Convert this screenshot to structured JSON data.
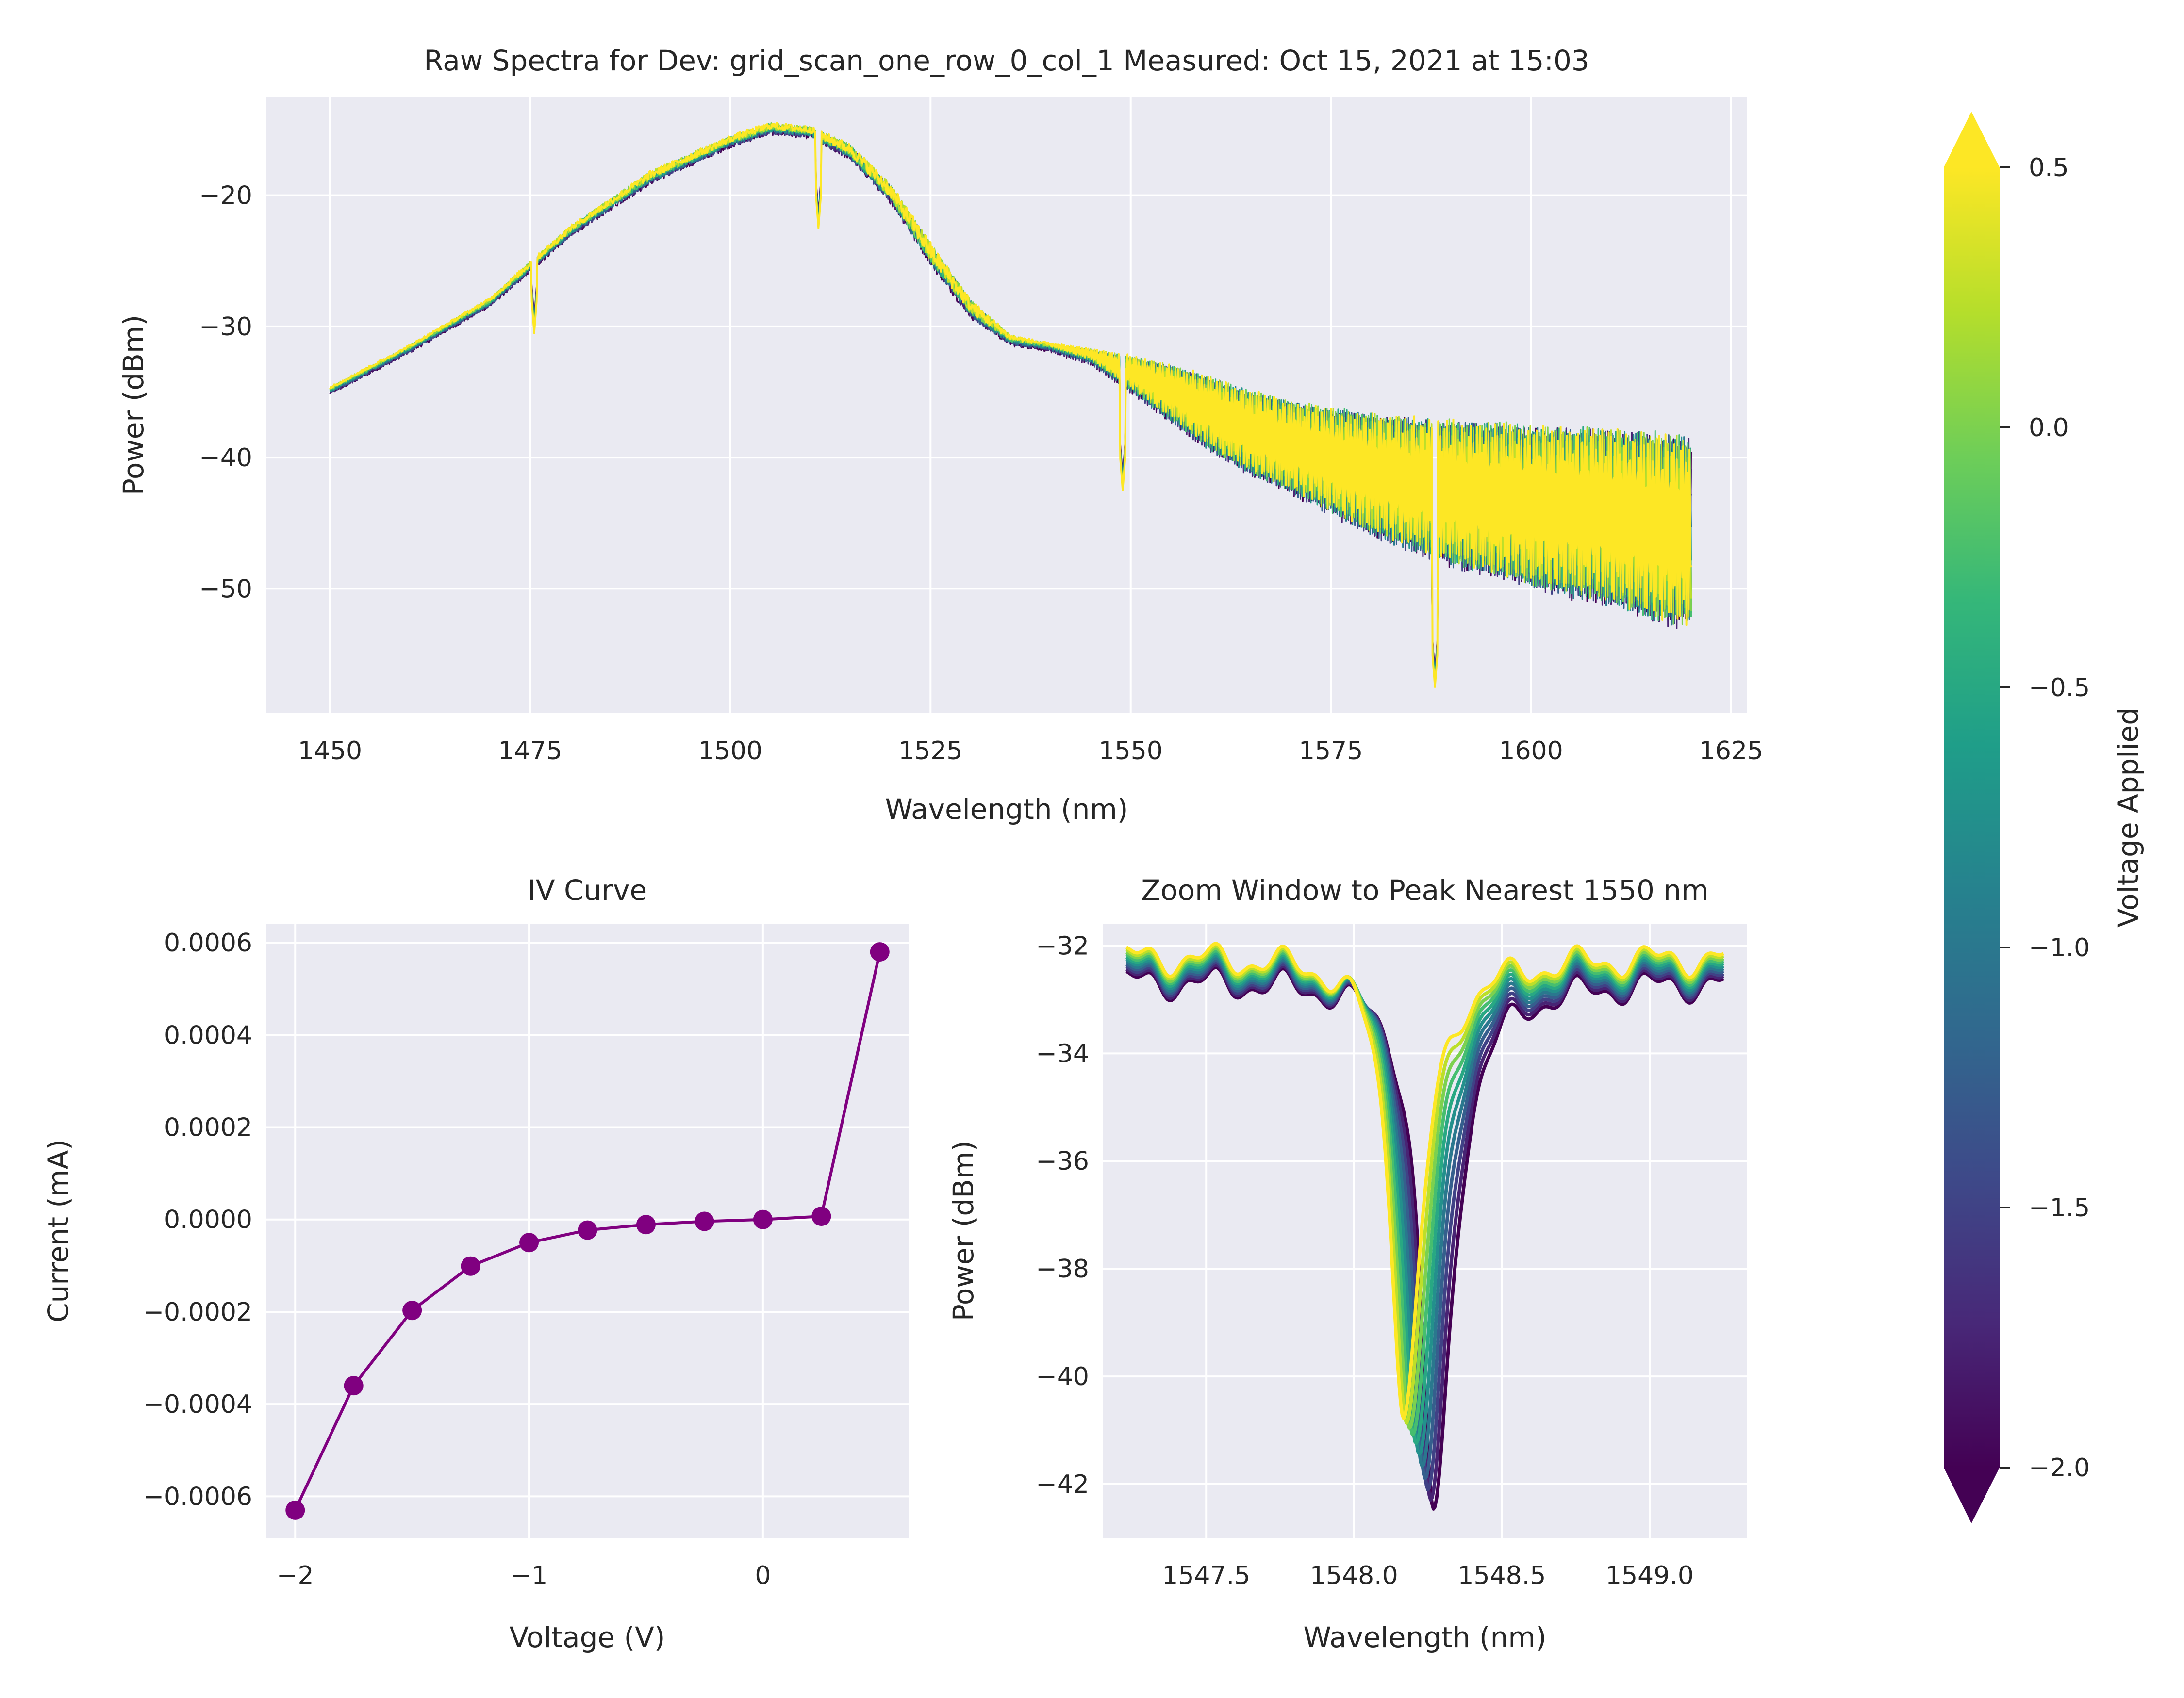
{
  "chart_data": [
    {
      "id": "raw-spectra",
      "type": "line",
      "title": "Raw Spectra for Dev: grid_scan_one_row_0_col_1 Measured: Oct 15, 2021 at 15:03",
      "xlabel": "Wavelength (nm)",
      "ylabel": "Power (dBm)",
      "xlim": [
        1442,
        1627
      ],
      "ylim": [
        -59.5,
        -12.5
      ],
      "xticks": [
        1450,
        1475,
        1500,
        1525,
        1550,
        1575,
        1600,
        1625
      ],
      "xtick_labels": [
        "1450",
        "1475",
        "1500",
        "1525",
        "1550",
        "1575",
        "1600",
        "1625"
      ],
      "yticks": [
        -20,
        -30,
        -40,
        -50
      ],
      "ytick_labels": [
        "−20",
        "−30",
        "−40",
        "−50"
      ],
      "grid": true,
      "x_range": [
        1450,
        1620
      ],
      "series_count": 11,
      "envelope": {
        "x": [
          1450,
          1460,
          1470,
          1475,
          1480,
          1490,
          1500,
          1505,
          1510,
          1515,
          1520,
          1525,
          1530,
          1535,
          1540,
          1545,
          1550,
          1555,
          1560,
          1565,
          1570,
          1575,
          1580,
          1585,
          1590,
          1595,
          1600,
          1605,
          1610,
          1615,
          1620
        ],
        "upper": [
          -34.8,
          -31.6,
          -28.0,
          -25.2,
          -22.5,
          -18.3,
          -15.6,
          -14.6,
          -14.9,
          -16.2,
          -19.2,
          -23.6,
          -28.0,
          -30.8,
          -31.5,
          -31.9,
          -32.4,
          -33.1,
          -34.0,
          -35.0,
          -35.8,
          -36.3,
          -36.7,
          -37.0,
          -37.2,
          -37.4,
          -37.6,
          -37.7,
          -37.8,
          -38.0,
          -38.5
        ],
        "lower": [
          -35.3,
          -32.1,
          -28.6,
          -26.0,
          -23.3,
          -19.3,
          -16.5,
          -15.5,
          -15.8,
          -17.5,
          -20.8,
          -25.6,
          -29.6,
          -31.6,
          -32.0,
          -33.0,
          -35.2,
          -37.5,
          -39.8,
          -41.6,
          -43.0,
          -44.6,
          -46.2,
          -47.4,
          -48.6,
          -49.4,
          -50.2,
          -51.0,
          -51.6,
          -52.8,
          -53.4
        ]
      },
      "dips": [
        {
          "x": 1475.5,
          "y": -30.5
        },
        {
          "x": 1511,
          "y": -22.5
        },
        {
          "x": 1549,
          "y": -42.5
        },
        {
          "x": 1588,
          "y": -57.5
        }
      ]
    },
    {
      "id": "iv-curve",
      "type": "line",
      "title": "IV Curve",
      "xlabel": "Voltage (V)",
      "ylabel": "Current (mA)",
      "xlim": [
        -2.125,
        0.625
      ],
      "ylim": [
        -0.00069,
        0.00064
      ],
      "xticks": [
        -2,
        -1,
        0
      ],
      "xtick_labels": [
        "−2",
        "−1",
        "0"
      ],
      "yticks": [
        0.0006,
        0.0004,
        0.0002,
        0.0,
        -0.0002,
        -0.0004,
        -0.0006
      ],
      "ytick_labels": [
        "0.0006",
        "0.0004",
        "0.0002",
        "0.0000",
        "−0.0002",
        "−0.0004",
        "−0.0006"
      ],
      "grid": true,
      "color": "#800080",
      "x": [
        -2.0,
        -1.75,
        -1.5,
        -1.25,
        -1.0,
        -0.75,
        -0.5,
        -0.25,
        0.0,
        0.25,
        0.5
      ],
      "y": [
        -0.00063,
        -0.00036,
        -0.000197,
        -0.000101,
        -5e-05,
        -2.3e-05,
        -1.1e-05,
        -4e-06,
        0.0,
        7e-06,
        0.00058
      ]
    },
    {
      "id": "zoom-window",
      "type": "line",
      "title": "Zoom Window to Peak Nearest 1550 nm",
      "xlabel": "Wavelength (nm)",
      "ylabel": "Power (dBm)",
      "xlim": [
        1547.15,
        1549.33
      ],
      "ylim": [
        -43.0,
        -31.6
      ],
      "xticks": [
        1547.5,
        1548.0,
        1548.5,
        1549.0
      ],
      "xtick_labels": [
        "1547.5",
        "1548.0",
        "1548.5",
        "1549.0"
      ],
      "yticks": [
        -32,
        -34,
        -36,
        -38,
        -40,
        -42
      ],
      "ytick_labels": [
        "−32",
        "−34",
        "−36",
        "−38",
        "−40",
        "−42"
      ],
      "grid": true,
      "series_count": 11,
      "voltages": [
        -2.0,
        -1.75,
        -1.5,
        -1.25,
        -1.0,
        -0.75,
        -0.5,
        -0.25,
        0.0,
        0.25,
        0.5
      ],
      "dip_center_at_min_voltage": 1548.27,
      "dip_center_at_max_voltage": 1548.17,
      "dip_depth_at_min_voltage": -42.6,
      "dip_depth_at_max_voltage": -40.6
    }
  ],
  "colorbar": {
    "label": "Voltage Applied",
    "min": -2.0,
    "max": 0.5,
    "ticks": [
      0.5,
      0.0,
      -0.5,
      -1.0,
      -1.5,
      -2.0
    ],
    "tick_labels": [
      "0.5",
      "0.0",
      "−0.5",
      "−1.0",
      "−1.5",
      "−2.0"
    ],
    "colormap": "viridis",
    "extend": "both",
    "colors": [
      "#440154",
      "#482878",
      "#3e4989",
      "#31688e",
      "#26828e",
      "#1f9e89",
      "#35b779",
      "#6ece58",
      "#b5de2b",
      "#fde725"
    ]
  }
}
